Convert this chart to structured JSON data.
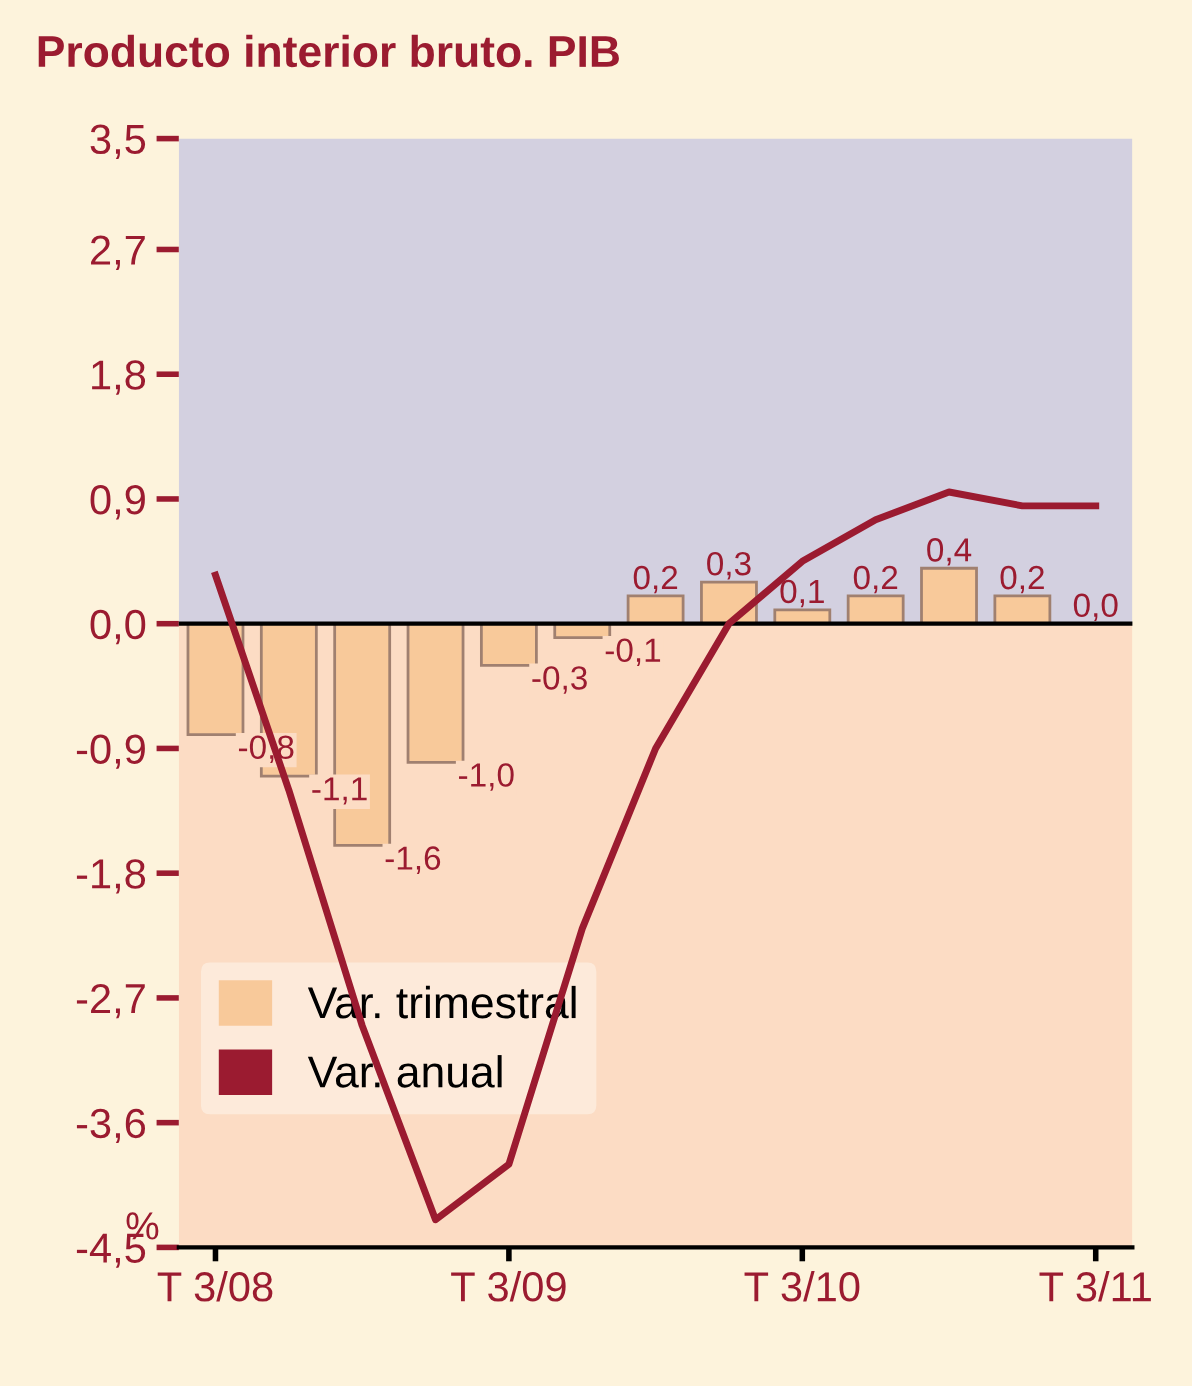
{
  "chart_data": {
    "type": "bar",
    "title": "Producto interior bruto. PIB",
    "ylabel": "%",
    "categories": [
      "T 3/08",
      null,
      null,
      null,
      "T 3/09",
      null,
      null,
      null,
      "T 3/10",
      null,
      null,
      null,
      "T 3/11"
    ],
    "series": [
      {
        "name": "Var. trimestral",
        "color": "#f8c99a",
        "values": [
          -0.8,
          -1.1,
          -1.6,
          -1.0,
          -0.3,
          -0.1,
          0.2,
          0.3,
          0.1,
          0.2,
          0.4,
          0.2,
          0.0
        ],
        "value_labels": [
          "-0,8",
          "-1,1",
          "-1,6",
          "-1,0",
          "-0,3",
          "-0,1",
          "0,2",
          "0,3",
          "0,1",
          "0,2",
          "0,4",
          "0,2",
          "0,0"
        ]
      },
      {
        "name": "Var. anual",
        "type": "line",
        "color": "#9b1b30",
        "values": [
          0.35,
          -1.2,
          -2.9,
          -4.3,
          -3.9,
          -2.2,
          -0.9,
          0.0,
          0.45,
          0.75,
          0.95,
          0.85,
          0.85
        ]
      }
    ],
    "ylim": [
      -4.5,
      3.5
    ],
    "yticks": [
      {
        "value": -4.5,
        "label": "-4,5"
      },
      {
        "value": -3.6,
        "label": "-3,6"
      },
      {
        "value": -2.7,
        "label": "-2,7"
      },
      {
        "value": -1.8,
        "label": "-1,8"
      },
      {
        "value": -0.9,
        "label": "-0,9"
      },
      {
        "value": 0.0,
        "label": "0,0"
      },
      {
        "value": 0.9,
        "label": "0,9"
      },
      {
        "value": 1.8,
        "label": "1,8"
      },
      {
        "value": 2.7,
        "label": "2,7"
      },
      {
        "value": 3.5,
        "label": "3,5"
      }
    ],
    "bands": [
      {
        "axis": "y",
        "from": 0,
        "to": 3.5,
        "color": "#d3d0e0"
      },
      {
        "axis": "y",
        "from": -4.5,
        "to": 0,
        "color": "#fcdcc4"
      }
    ],
    "ref_lines": [
      {
        "axis": "y",
        "value": 0,
        "color": "#000000"
      }
    ],
    "legend": "bottom left",
    "grid": false
  }
}
